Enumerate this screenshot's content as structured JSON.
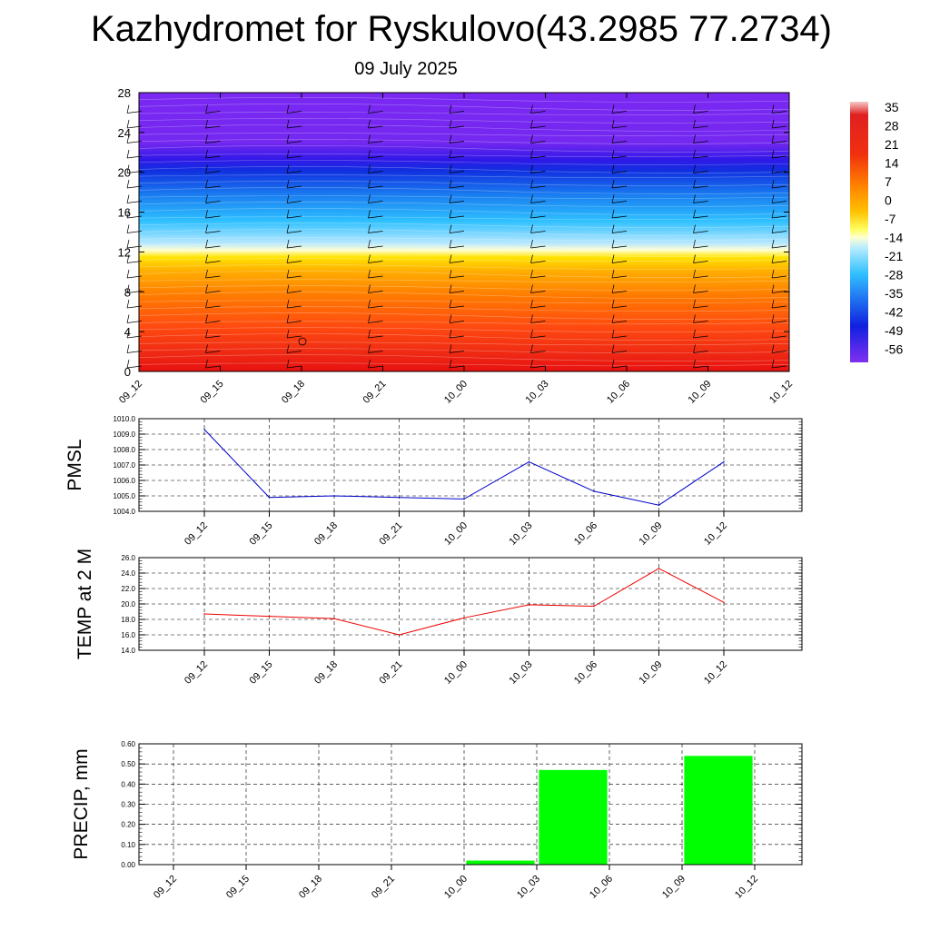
{
  "title": "Kazhydromet for Ryskulovo(43.2985 77.2734)",
  "subtitle": "09 July 2025",
  "chart_data": [
    {
      "type": "heatmap",
      "title": "",
      "xlabel": "",
      "ylabel": "",
      "x": [
        "09_12",
        "09_15",
        "09_18",
        "09_21",
        "10_00",
        "10_03",
        "10_06",
        "10_09",
        "10_12"
      ],
      "ylim": [
        0,
        28
      ],
      "yticks": [
        0,
        4,
        8,
        12,
        16,
        20,
        24,
        28
      ],
      "colorbar": {
        "labels": [
          35,
          28,
          21,
          14,
          7,
          0,
          -7,
          -14,
          -21,
          -28,
          -35,
          -42,
          -49,
          -56
        ],
        "colors": [
          "#f5b8b8",
          "#e01818",
          "#ff7a00",
          "#ffd000",
          "#ffffc8",
          "#2ad0ff",
          "#1c4df0",
          "#7a20f0"
        ]
      },
      "overlay": "wind barbs"
    },
    {
      "type": "line",
      "ylabel": "PMSL",
      "x": [
        "09_12",
        "09_15",
        "09_18",
        "09_21",
        "10_00",
        "10_03",
        "10_06",
        "10_09",
        "10_12"
      ],
      "series": [
        {
          "values": [
            1009.3,
            1004.9,
            1005.0,
            1004.9,
            1004.8,
            1007.2,
            1005.3,
            1004.4,
            1007.2
          ]
        }
      ],
      "ylim": [
        1004.0,
        1010.0
      ],
      "yticks": [
        "1004.0",
        "1005.0",
        "1006.0",
        "1007.0",
        "1008.0",
        "1009.0",
        "1010.0"
      ],
      "color": "#0000cc",
      "grid": true
    },
    {
      "type": "line",
      "ylabel": "TEMP at 2 M",
      "x": [
        "09_12",
        "09_15",
        "09_18",
        "09_21",
        "10_00",
        "10_03",
        "10_06",
        "10_09",
        "10_12"
      ],
      "series": [
        {
          "values": [
            18.7,
            18.4,
            18.1,
            16.0,
            18.2,
            19.9,
            19.7,
            24.6,
            20.2
          ]
        }
      ],
      "ylim": [
        14.0,
        26.0
      ],
      "yticks": [
        "14.0",
        "16.0",
        "18.0",
        "20.0",
        "22.0",
        "24.0",
        "26.0"
      ],
      "color": "#ee0000",
      "grid": true
    },
    {
      "type": "bar",
      "ylabel": "PRECIP, mm",
      "categories": [
        "09_12",
        "09_15",
        "09_18",
        "09_21",
        "10_00",
        "10_03",
        "10_06",
        "10_09",
        "10_12"
      ],
      "values": [
        0,
        0,
        0,
        0,
        0,
        0.02,
        0.47,
        0,
        0.54
      ],
      "ylim": [
        0,
        0.6
      ],
      "yticks": [
        "0.00",
        "0.10",
        "0.20",
        "0.30",
        "0.40",
        "0.50",
        "0.60"
      ],
      "color": "#00ff00",
      "grid": true
    }
  ]
}
